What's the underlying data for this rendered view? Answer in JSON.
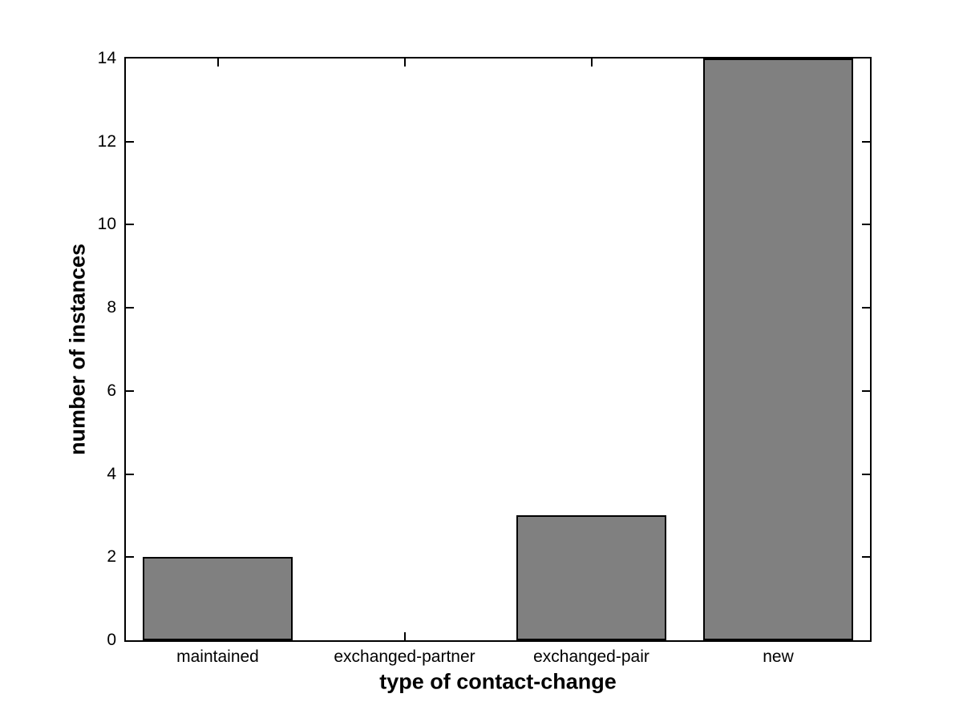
{
  "figure": {
    "background_color": "#ffffff"
  },
  "chart_data": {
    "type": "bar",
    "categories": [
      "maintained",
      "exchanged-partner",
      "exchanged-pair",
      "new"
    ],
    "values": [
      2,
      0,
      3,
      14
    ],
    "title": "",
    "xlabel": "type of contact-change",
    "ylabel": "number of instances",
    "ylim": [
      0,
      14
    ],
    "yticks": [
      0,
      2,
      4,
      6,
      8,
      10,
      12,
      14
    ],
    "ytick_labels": [
      "0",
      "2",
      "4",
      "6",
      "8",
      "10",
      "12",
      "14"
    ],
    "bar_width_fraction": 0.8,
    "bar_color": "#808080",
    "bar_edge_color": "#000000",
    "axis_color": "#000000",
    "text_color": "#000000",
    "grid": false,
    "legend_position": "none",
    "tick_direction": "in",
    "box": true
  }
}
